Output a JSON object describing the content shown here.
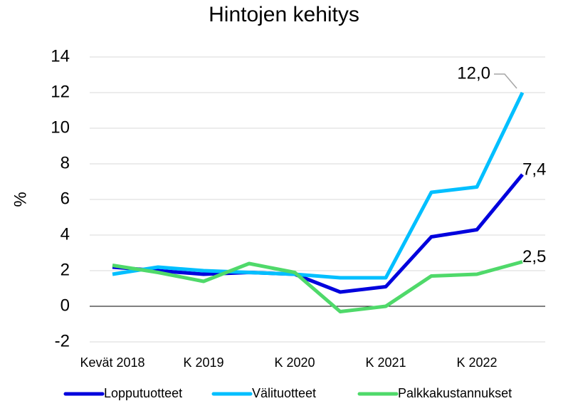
{
  "chart_data": {
    "type": "line",
    "title": "Hintojen kehitys",
    "y_label": "%",
    "categories": [
      "Kevät 2018",
      null,
      "K 2019",
      null,
      "K 2020",
      null,
      "K 2021",
      null,
      "K 2022",
      null
    ],
    "series": [
      {
        "name": "Lopputuotteet",
        "color": "#0000dd",
        "values": [
          2.2,
          2.0,
          1.8,
          1.9,
          1.8,
          0.8,
          1.1,
          3.9,
          4.3,
          7.4
        ],
        "value_labels": [
          null,
          null,
          null,
          null,
          null,
          null,
          null,
          null,
          null,
          "7,4"
        ]
      },
      {
        "name": "Välituotteet",
        "color": "#00bfff",
        "values": [
          1.8,
          2.2,
          2.0,
          1.9,
          1.8,
          1.6,
          1.6,
          6.4,
          6.7,
          12.0
        ],
        "value_labels": [
          null,
          null,
          null,
          null,
          null,
          null,
          null,
          null,
          null,
          "12,0"
        ]
      },
      {
        "name": "Palkkakustannukset",
        "color": "#4fd96a",
        "values": [
          2.3,
          1.9,
          1.4,
          2.4,
          1.9,
          -0.3,
          0.0,
          1.7,
          1.8,
          2.5
        ],
        "value_labels": [
          null,
          null,
          null,
          null,
          null,
          null,
          null,
          null,
          null,
          "2,5"
        ]
      }
    ],
    "ylim": [
      -2,
      14
    ],
    "yticks": [
      -2,
      0,
      2,
      4,
      6,
      8,
      10,
      12,
      14
    ],
    "grid": true,
    "legend": "bottom"
  }
}
